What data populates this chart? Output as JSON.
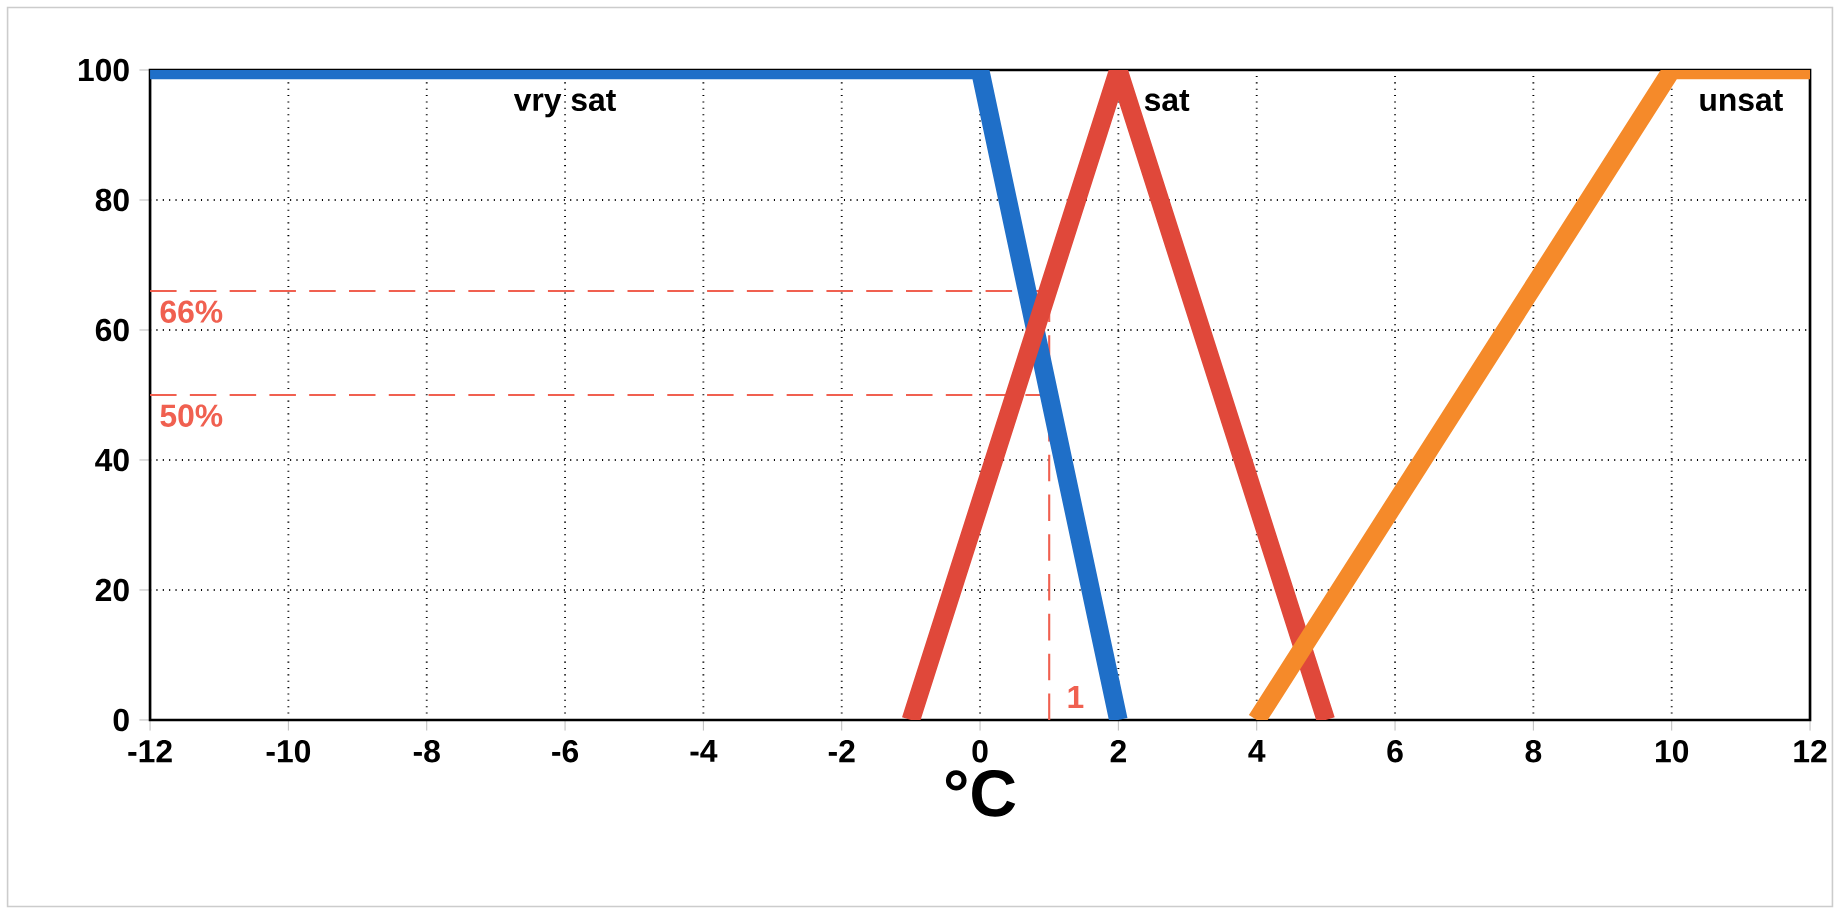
{
  "chart_data": {
    "type": "line",
    "xlabel": "°C",
    "series": [
      {
        "name": "vry sat",
        "color": "#1f6fc8",
        "x": [
          -12,
          0,
          2
        ],
        "values": [
          100,
          100,
          0
        ]
      },
      {
        "name": "sat",
        "color": "#e0483a",
        "x": [
          -1,
          2,
          5
        ],
        "values": [
          0,
          100,
          0
        ]
      },
      {
        "name": "unsat",
        "color": "#f58a2a",
        "x": [
          4,
          10,
          12
        ],
        "values": [
          0,
          100,
          100
        ]
      }
    ],
    "xlim": [
      -12,
      12
    ],
    "xticks": [
      -12,
      -10,
      -8,
      -6,
      -4,
      -2,
      0,
      2,
      4,
      6,
      8,
      10,
      12
    ],
    "ylim": [
      0,
      100
    ],
    "yticks": [
      0,
      20,
      40,
      60,
      80,
      100
    ],
    "ref_lines": [
      {
        "axis": "y",
        "value": 66,
        "label": "66%",
        "color": "#f06050",
        "line_style": "dashed"
      },
      {
        "axis": "y",
        "value": 50,
        "label": "50%",
        "color": "#f06050",
        "line_style": "dashed"
      },
      {
        "axis": "x",
        "value": 1,
        "label": "1",
        "color": "#f06050",
        "line_style": "dashed"
      }
    ],
    "grid": true,
    "marker": "none",
    "line_style": "solid"
  }
}
